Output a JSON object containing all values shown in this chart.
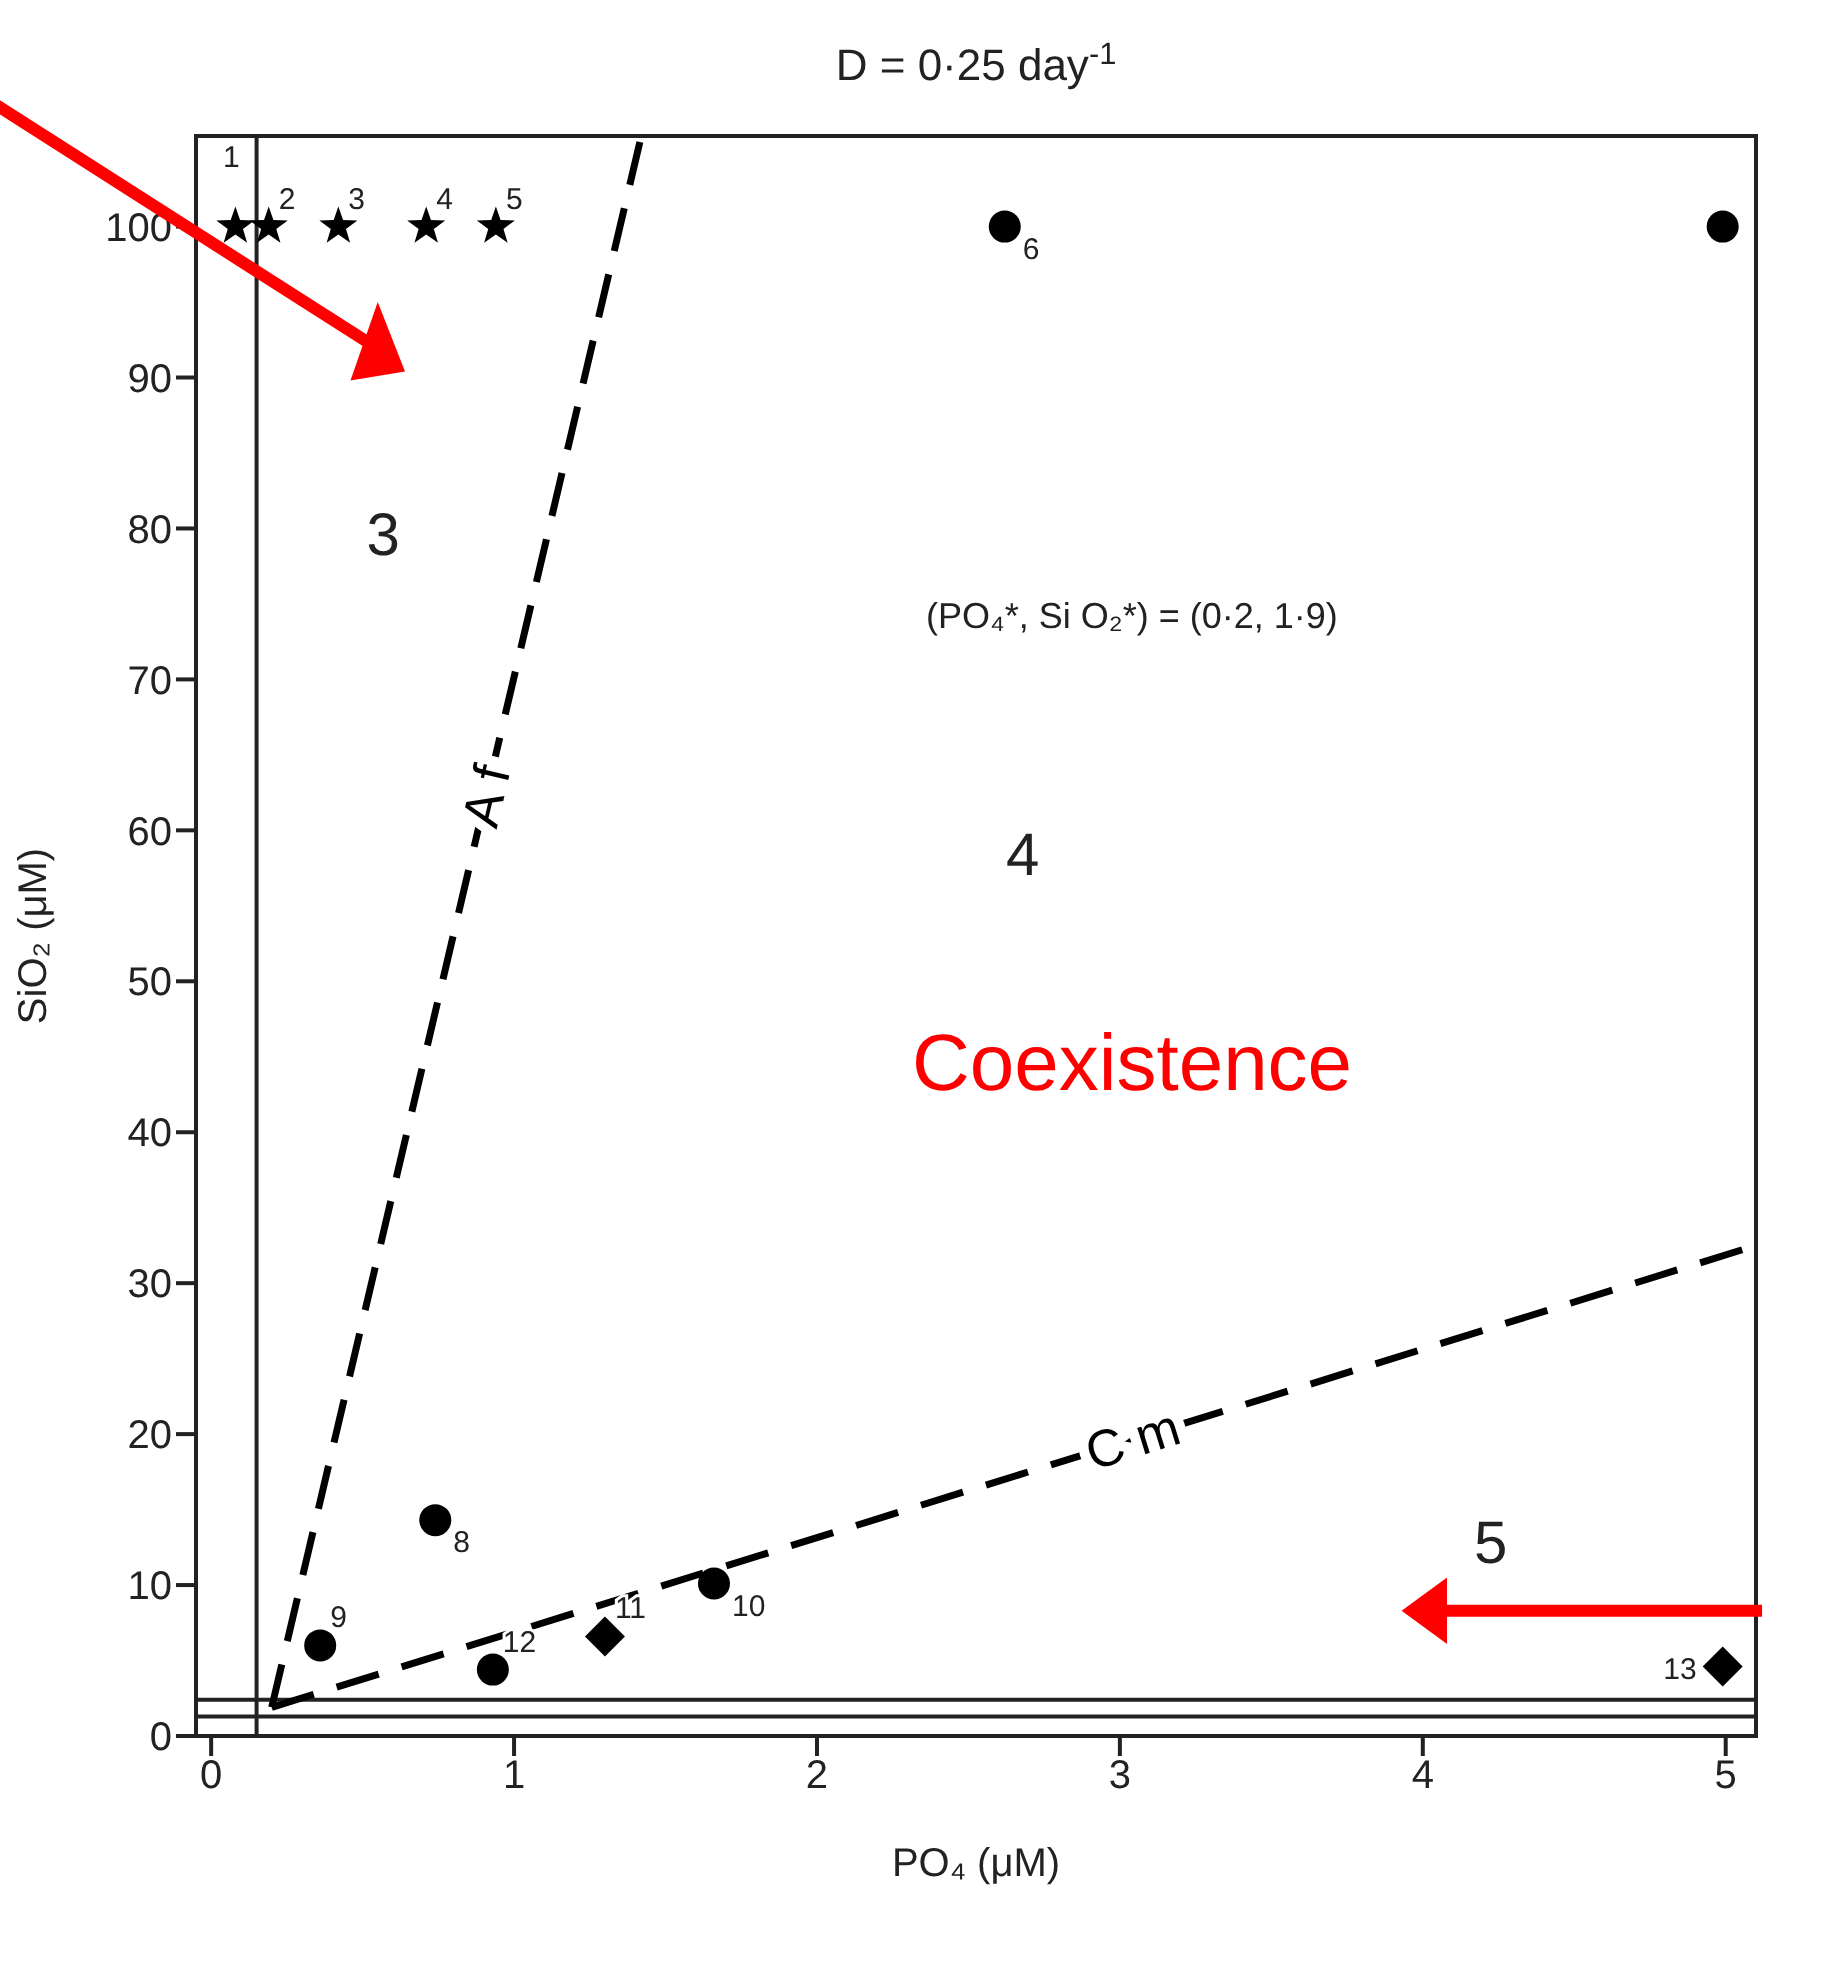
{
  "chart_data": {
    "type": "scatter",
    "title": "D = 0·25 day$^{-1}$",
    "xlabel": "PO₄ (μM)",
    "ylabel": "SiO₂ (μM)",
    "xlim": [
      -0.05,
      5.1
    ],
    "ylim": [
      0,
      106
    ],
    "xticks": [
      0,
      1,
      2,
      3,
      4,
      5
    ],
    "yticks": [
      0,
      10,
      20,
      30,
      40,
      50,
      60,
      70,
      80,
      90,
      100
    ],
    "grid": false,
    "legend": false,
    "series": [
      {
        "type": "scatter",
        "marker": "star",
        "color": "#000000",
        "x": [
          0.08,
          0.19,
          0.42,
          0.71,
          0.94
        ],
        "values": [
          100,
          100,
          100,
          100,
          100
        ]
      },
      {
        "type": "scatter",
        "marker": "circle",
        "color": "#000000",
        "x": [
          2.62,
          4.99,
          0.74,
          0.36,
          1.66,
          0.93
        ],
        "values": [
          100,
          100,
          14.3,
          6.0,
          10.1,
          4.4
        ]
      },
      {
        "type": "scatter",
        "marker": "diamond",
        "color": "#000000",
        "x": [
          1.3,
          4.99
        ],
        "values": [
          6.6,
          4.6
        ]
      },
      {
        "type": "line",
        "name": "A f",
        "color": "#000000",
        "line_style": "dashed",
        "marker": "none",
        "x": [
          0.2,
          1.42
        ],
        "values": [
          1.9,
          106
        ]
      },
      {
        "type": "line",
        "name": "C m",
        "color": "#000000",
        "line_style": "dashed",
        "marker": "none",
        "x": [
          0.2,
          5.1
        ],
        "values": [
          1.9,
          32.5
        ]
      }
    ],
    "ref_lines": [
      {
        "axis": "x",
        "value": 0.15
      },
      {
        "axis": "y",
        "value": 2.4
      },
      {
        "axis": "y",
        "value": 1.3
      }
    ],
    "annotations": [
      "3",
      "4",
      "5",
      "(PO₄*, Si O₂*) = (0·2, 1·9)",
      "Coexistence",
      {
        "text": "1",
        "x": 0.08,
        "y": 100
      },
      {
        "text": "2",
        "x": 0.19,
        "y": 100
      },
      {
        "text": "3",
        "x": 0.42,
        "y": 100
      },
      {
        "text": "4",
        "x": 0.71,
        "y": 100
      },
      {
        "text": "5",
        "x": 0.94,
        "y": 100
      },
      {
        "text": "6",
        "x": 2.62,
        "y": 100
      },
      {
        "text": "8",
        "x": 0.74,
        "y": 14.3
      },
      {
        "text": "9",
        "x": 0.36,
        "y": 6.0
      },
      {
        "text": "10",
        "x": 1.66,
        "y": 10.1
      },
      {
        "text": "11",
        "x": 1.3,
        "y": 6.6
      },
      {
        "text": "12",
        "x": 0.93,
        "y": 4.4
      },
      {
        "text": "13",
        "x": 4.99,
        "y": 4.6
      }
    ]
  }
}
